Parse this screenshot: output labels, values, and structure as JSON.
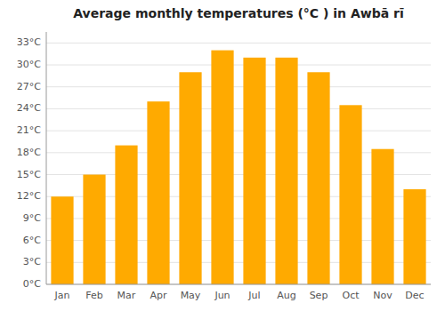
{
  "chart_data": {
    "type": "bar",
    "title": "Average monthly temperatures (°C ) in Awbā rī",
    "categories": [
      "Jan",
      "Feb",
      "Mar",
      "Apr",
      "May",
      "Jun",
      "Jul",
      "Aug",
      "Sep",
      "Oct",
      "Nov",
      "Dec"
    ],
    "values": [
      12,
      15,
      19,
      25,
      29,
      32,
      31,
      31,
      29,
      24.5,
      18.5,
      13
    ],
    "color": "#FFAA00",
    "ylim": [
      0,
      34.5
    ],
    "yticks": [
      {
        "value": 0,
        "label": "0°C"
      },
      {
        "value": 3,
        "label": "3°C"
      },
      {
        "value": 6,
        "label": "6°C"
      },
      {
        "value": 9,
        "label": "9°C"
      },
      {
        "value": 12,
        "label": "12°C"
      },
      {
        "value": 15,
        "label": "15°C"
      },
      {
        "value": 18,
        "label": "18°C"
      },
      {
        "value": 21,
        "label": "21°C"
      },
      {
        "value": 24,
        "label": "24°C"
      },
      {
        "value": 27,
        "label": "27°C"
      },
      {
        "value": 30,
        "label": "30°C"
      },
      {
        "value": 33,
        "label": "33°C"
      }
    ],
    "grid": true
  }
}
